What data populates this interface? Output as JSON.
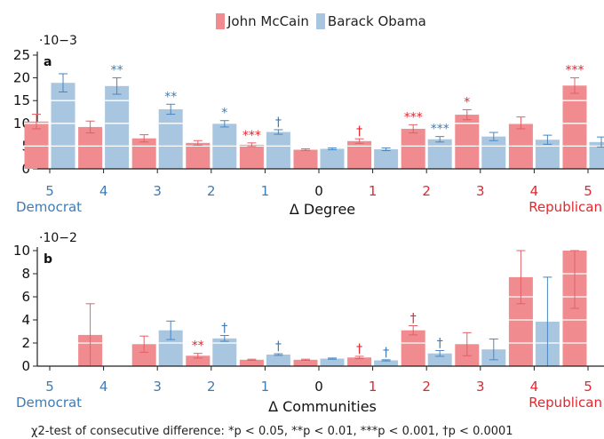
{
  "legend": {
    "mccain": "John McCain",
    "obama": "Barack Obama"
  },
  "colors": {
    "mccain": "#f08b8f",
    "obama": "#a9c6e1",
    "blue_text": "#3e7cb6",
    "red_text": "#e0282f",
    "black_text": "#111111"
  },
  "footnote": "χ2-test of consecutive difference: *p < 0.05, **p < 0.01, ***p < 0.001, †p < 0.0001",
  "chart_data": [
    {
      "type": "bar",
      "panel_label": "a",
      "scale_label": "·10−3",
      "xlabel": "Δ Degree",
      "left_caption": "Democrat",
      "right_caption": "Republican",
      "categories": [
        "5",
        "4",
        "3",
        "2",
        "1",
        "0",
        "1",
        "2",
        "3",
        "4",
        "5"
      ],
      "category_colors": [
        "blue",
        "blue",
        "blue",
        "blue",
        "blue",
        "black",
        "red",
        "red",
        "red",
        "red",
        "red"
      ],
      "ylim": [
        0,
        25
      ],
      "yticks": [
        0,
        5,
        10,
        15,
        20,
        25
      ],
      "series": [
        {
          "name": "John McCain",
          "key": "mccain",
          "values": [
            10.4,
            9.2,
            6.7,
            5.7,
            5.3,
            4.2,
            6.1,
            8.8,
            11.9,
            10.1,
            18.3
          ],
          "errors": [
            1.6,
            1.3,
            0.8,
            0.5,
            0.4,
            0.2,
            0.5,
            0.9,
            1.1,
            1.3,
            1.7
          ],
          "marks": [
            "",
            "",
            "",
            "",
            "***",
            "",
            "†",
            "***",
            "*",
            "",
            "***"
          ]
        },
        {
          "name": "Barack Obama",
          "key": "obama",
          "values": [
            18.9,
            18.2,
            13.1,
            9.9,
            8.1,
            4.4,
            4.3,
            6.5,
            7.1,
            6.4,
            5.9
          ],
          "errors": [
            2.0,
            1.8,
            1.1,
            0.7,
            0.5,
            0.2,
            0.3,
            0.6,
            0.9,
            1.0,
            1.1
          ],
          "marks": [
            "",
            "**",
            "**",
            "*",
            "†",
            "",
            "",
            "***",
            "",
            "",
            ""
          ]
        }
      ]
    },
    {
      "type": "bar",
      "panel_label": "b",
      "scale_label": "·10−2",
      "xlabel": "Δ Communities",
      "left_caption": "Democrat",
      "right_caption": "Republican",
      "categories": [
        "5",
        "4",
        "3",
        "2",
        "1",
        "0",
        "1",
        "2",
        "3",
        "4",
        "5"
      ],
      "category_colors": [
        "blue",
        "blue",
        "blue",
        "blue",
        "blue",
        "black",
        "red",
        "red",
        "red",
        "red",
        "red"
      ],
      "ylim": [
        0,
        10
      ],
      "yticks": [
        0,
        2,
        4,
        6,
        8,
        10
      ],
      "series": [
        {
          "name": "John McCain",
          "key": "mccain",
          "values": [
            0,
            2.7,
            1.9,
            0.9,
            0.55,
            0.55,
            0.75,
            3.1,
            1.9,
            7.7,
            10.0
          ],
          "errors": [
            0,
            2.7,
            0.7,
            0.2,
            0.05,
            0.05,
            0.1,
            0.4,
            1.0,
            2.3,
            5.0
          ],
          "marks": [
            "",
            "",
            "",
            "**",
            "",
            "",
            "†",
            "†",
            "",
            "",
            ""
          ]
        },
        {
          "name": "Barack Obama",
          "key": "obama",
          "values": [
            0,
            0,
            3.1,
            2.4,
            1.0,
            0.65,
            0.5,
            1.1,
            1.45,
            3.85,
            0
          ],
          "errors": [
            0,
            0,
            0.8,
            0.25,
            0.07,
            0.05,
            0.05,
            0.25,
            0.9,
            3.85,
            0
          ],
          "marks": [
            "",
            "",
            "",
            "†",
            "†",
            "",
            "†",
            "†",
            "",
            "",
            ""
          ]
        }
      ]
    }
  ]
}
